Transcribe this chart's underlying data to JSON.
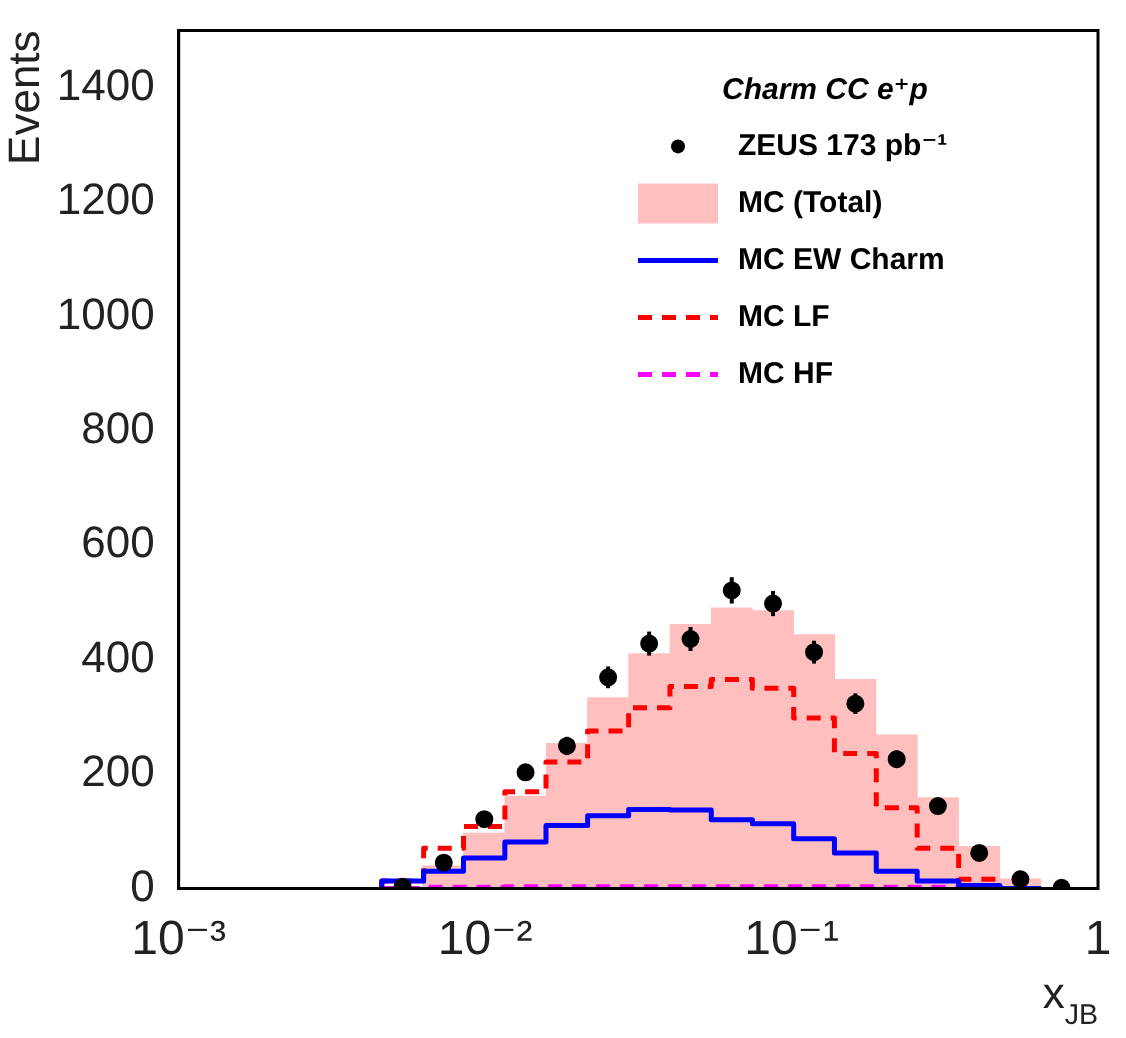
{
  "chart_data": {
    "type": "histogram",
    "xlabel": "x$_{JB}$",
    "ylabel": "Events",
    "legend_title": "Charm CC e⁺p",
    "log": "x",
    "xlim": [
      0.001,
      1
    ],
    "xticks": [
      {
        "value": 0.001,
        "label": "10⁻³"
      },
      {
        "value": 0.01,
        "label": "10⁻²"
      },
      {
        "value": 0.1,
        "label": "10⁻¹"
      },
      1
    ],
    "ylim": [
      0,
      1500
    ],
    "yticks": [
      0,
      200,
      400,
      600,
      800,
      1000,
      1200,
      1400
    ],
    "grid": false,
    "legend": "top right",
    "bins": [
      0.0046,
      0.0063,
      0.0085,
      0.0116,
      0.0158,
      0.0216,
      0.0294,
      0.0401,
      0.0547,
      0.0745,
      0.1016,
      0.138,
      0.189,
      0.257,
      0.351,
      0.478,
      0.652,
      0.887
    ],
    "series": [
      {
        "name": "ZEUS 173 pb⁻¹",
        "type": "scatter",
        "color": "#000000",
        "marker": "circle",
        "x": [
          0.00538,
          0.00733,
          0.00994,
          0.01355,
          0.01849,
          0.0252,
          0.0343,
          0.0468,
          0.0638,
          0.087,
          0.1184,
          0.1615,
          0.2203,
          0.3003,
          0.4097,
          0.5583,
          0.7605
        ],
        "values": [
          3,
          45,
          121,
          203,
          249,
          369,
          428,
          436,
          521,
          498,
          413,
          323,
          226,
          144,
          62,
          16,
          1
        ],
        "errors": [
          2,
          7,
          11,
          14,
          16,
          19,
          21,
          21,
          23,
          22,
          20,
          18,
          15,
          12,
          8,
          4,
          null
        ]
      },
      {
        "name": "MC (Total)",
        "type": "histogram",
        "color": "#ffbfbf",
        "values": [
          0,
          39,
          96,
          161,
          253,
          333,
          410,
          461,
          490,
          485,
          443,
          365,
          268,
          158,
          73,
          16,
          0
        ]
      },
      {
        "name": "MC EW Charm",
        "type": "step",
        "color": "#0000ff",
        "line_style": "solid",
        "x": [
          0.0046,
          0.0063,
          0.0085,
          0.0116,
          0.0158,
          0.0216,
          0.0294,
          0.0401,
          0.0547,
          0.0745,
          0.1016,
          0.138,
          0.189,
          0.257,
          0.351,
          0.478,
          0.652
        ],
        "values": [
          0,
          13,
          30,
          53,
          81,
          110,
          127,
          138,
          137,
          120,
          113,
          87,
          62,
          30,
          13,
          5,
          0
        ]
      },
      {
        "name": "MC LF",
        "type": "step",
        "color": "#ff0000",
        "line_style": "dashed",
        "x": [
          0.0046,
          0.0063,
          0.0085,
          0.0116,
          0.0158,
          0.0216,
          0.0294,
          0.0401,
          0.0547,
          0.0745,
          0.1016,
          0.138,
          0.189,
          0.257,
          0.351,
          0.478,
          0.652
        ],
        "values": [
          0,
          13,
          70,
          108,
          169,
          221,
          275,
          316,
          353,
          365,
          350,
          298,
          236,
          141,
          70,
          16,
          0
        ]
      },
      {
        "name": "MC HF",
        "type": "step",
        "color": "#ff00ff",
        "line_style": "dashed",
        "x": [
          0.0046,
          0.0063,
          0.0085,
          0.0116,
          0.0158,
          0.0216,
          0.0294,
          0.0401,
          0.0547,
          0.0745,
          0.1016,
          0.138,
          0.189,
          0.257,
          0.351,
          0.478,
          0.652
        ],
        "values": [
          0,
          0,
          2,
          2,
          3,
          3,
          3,
          3,
          3,
          3,
          3,
          3,
          3,
          2,
          2,
          0,
          0
        ]
      }
    ]
  }
}
